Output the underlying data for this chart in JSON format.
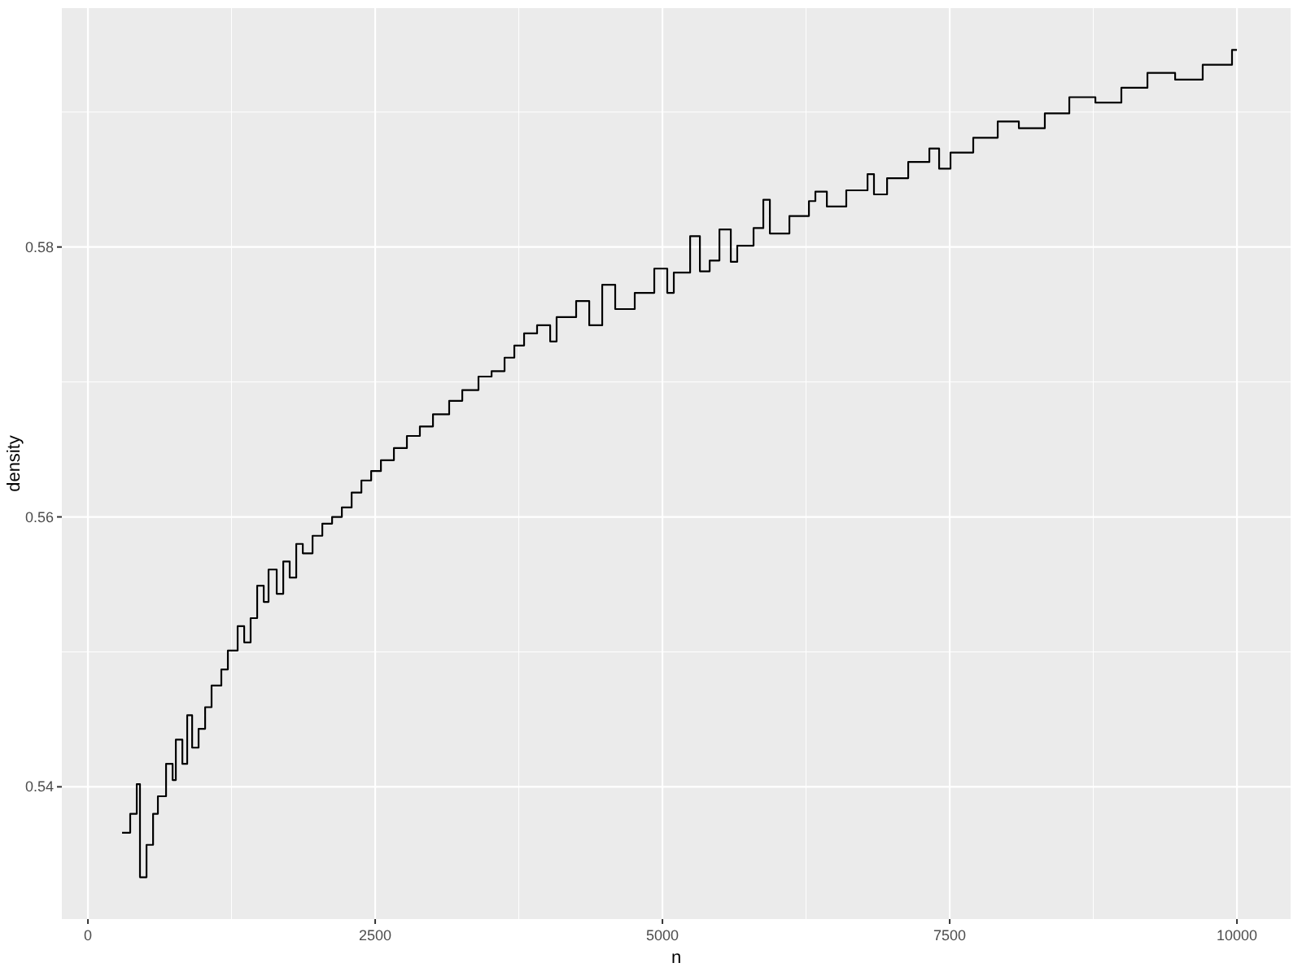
{
  "chart_data": {
    "type": "step",
    "xlabel": "n",
    "ylabel": "density",
    "xlim": [
      -227,
      10467
    ],
    "ylim": [
      0.5302,
      0.5977
    ],
    "xticks": [
      0,
      2500,
      5000,
      7500,
      10000
    ],
    "yticks": [
      0.54,
      0.56,
      0.58
    ],
    "grid": true,
    "x": [
      297,
      368,
      425,
      453,
      510,
      567,
      609,
      680,
      737,
      765,
      822,
      864,
      907,
      963,
      1020,
      1076,
      1161,
      1218,
      1303,
      1360,
      1416,
      1473,
      1530,
      1572,
      1643,
      1700,
      1756,
      1813,
      1870,
      1955,
      2040,
      2125,
      2210,
      2295,
      2380,
      2465,
      2550,
      2663,
      2776,
      2889,
      3003,
      3144,
      3258,
      3399,
      3513,
      3626,
      3711,
      3796,
      3909,
      4023,
      4079,
      4249,
      4363,
      4476,
      4589,
      4759,
      4929,
      5042,
      5099,
      5241,
      5326,
      5411,
      5496,
      5595,
      5651,
      5793,
      5878,
      5935,
      6105,
      6275,
      6331,
      6431,
      6600,
      6785,
      6841,
      6955,
      7139,
      7323,
      7408,
      7507,
      7705,
      7918,
      8102,
      8328,
      8541,
      8768,
      8994,
      9221,
      9462,
      9702,
      9957,
      10000
    ],
    "series": [
      {
        "color": "#000000",
        "values": [
          0.5366,
          0.538,
          0.5402,
          0.5333,
          0.5357,
          0.538,
          0.5393,
          0.5417,
          0.5405,
          0.5435,
          0.5417,
          0.5453,
          0.5429,
          0.5443,
          0.5459,
          0.5475,
          0.5487,
          0.5501,
          0.5519,
          0.5507,
          0.5525,
          0.5549,
          0.5537,
          0.5561,
          0.5543,
          0.5567,
          0.5555,
          0.558,
          0.5573,
          0.5586,
          0.5595,
          0.56,
          0.5607,
          0.5618,
          0.5627,
          0.5634,
          0.5642,
          0.5651,
          0.566,
          0.5667,
          0.5676,
          0.5686,
          0.5694,
          0.5704,
          0.5708,
          0.5718,
          0.5727,
          0.5736,
          0.5742,
          0.573,
          0.5748,
          0.576,
          0.5742,
          0.5772,
          0.5754,
          0.5766,
          0.5784,
          0.5766,
          0.5781,
          0.5808,
          0.5782,
          0.579,
          0.5813,
          0.5789,
          0.5801,
          0.5814,
          0.5835,
          0.581,
          0.5823,
          0.5834,
          0.5841,
          0.583,
          0.5842,
          0.5854,
          0.5839,
          0.5851,
          0.5863,
          0.5873,
          0.5858,
          0.587,
          0.5881,
          0.5893,
          0.5888,
          0.5899,
          0.5911,
          0.5907,
          0.5918,
          0.5929,
          0.5924,
          0.5935,
          0.5946,
          0.5946
        ]
      }
    ]
  }
}
